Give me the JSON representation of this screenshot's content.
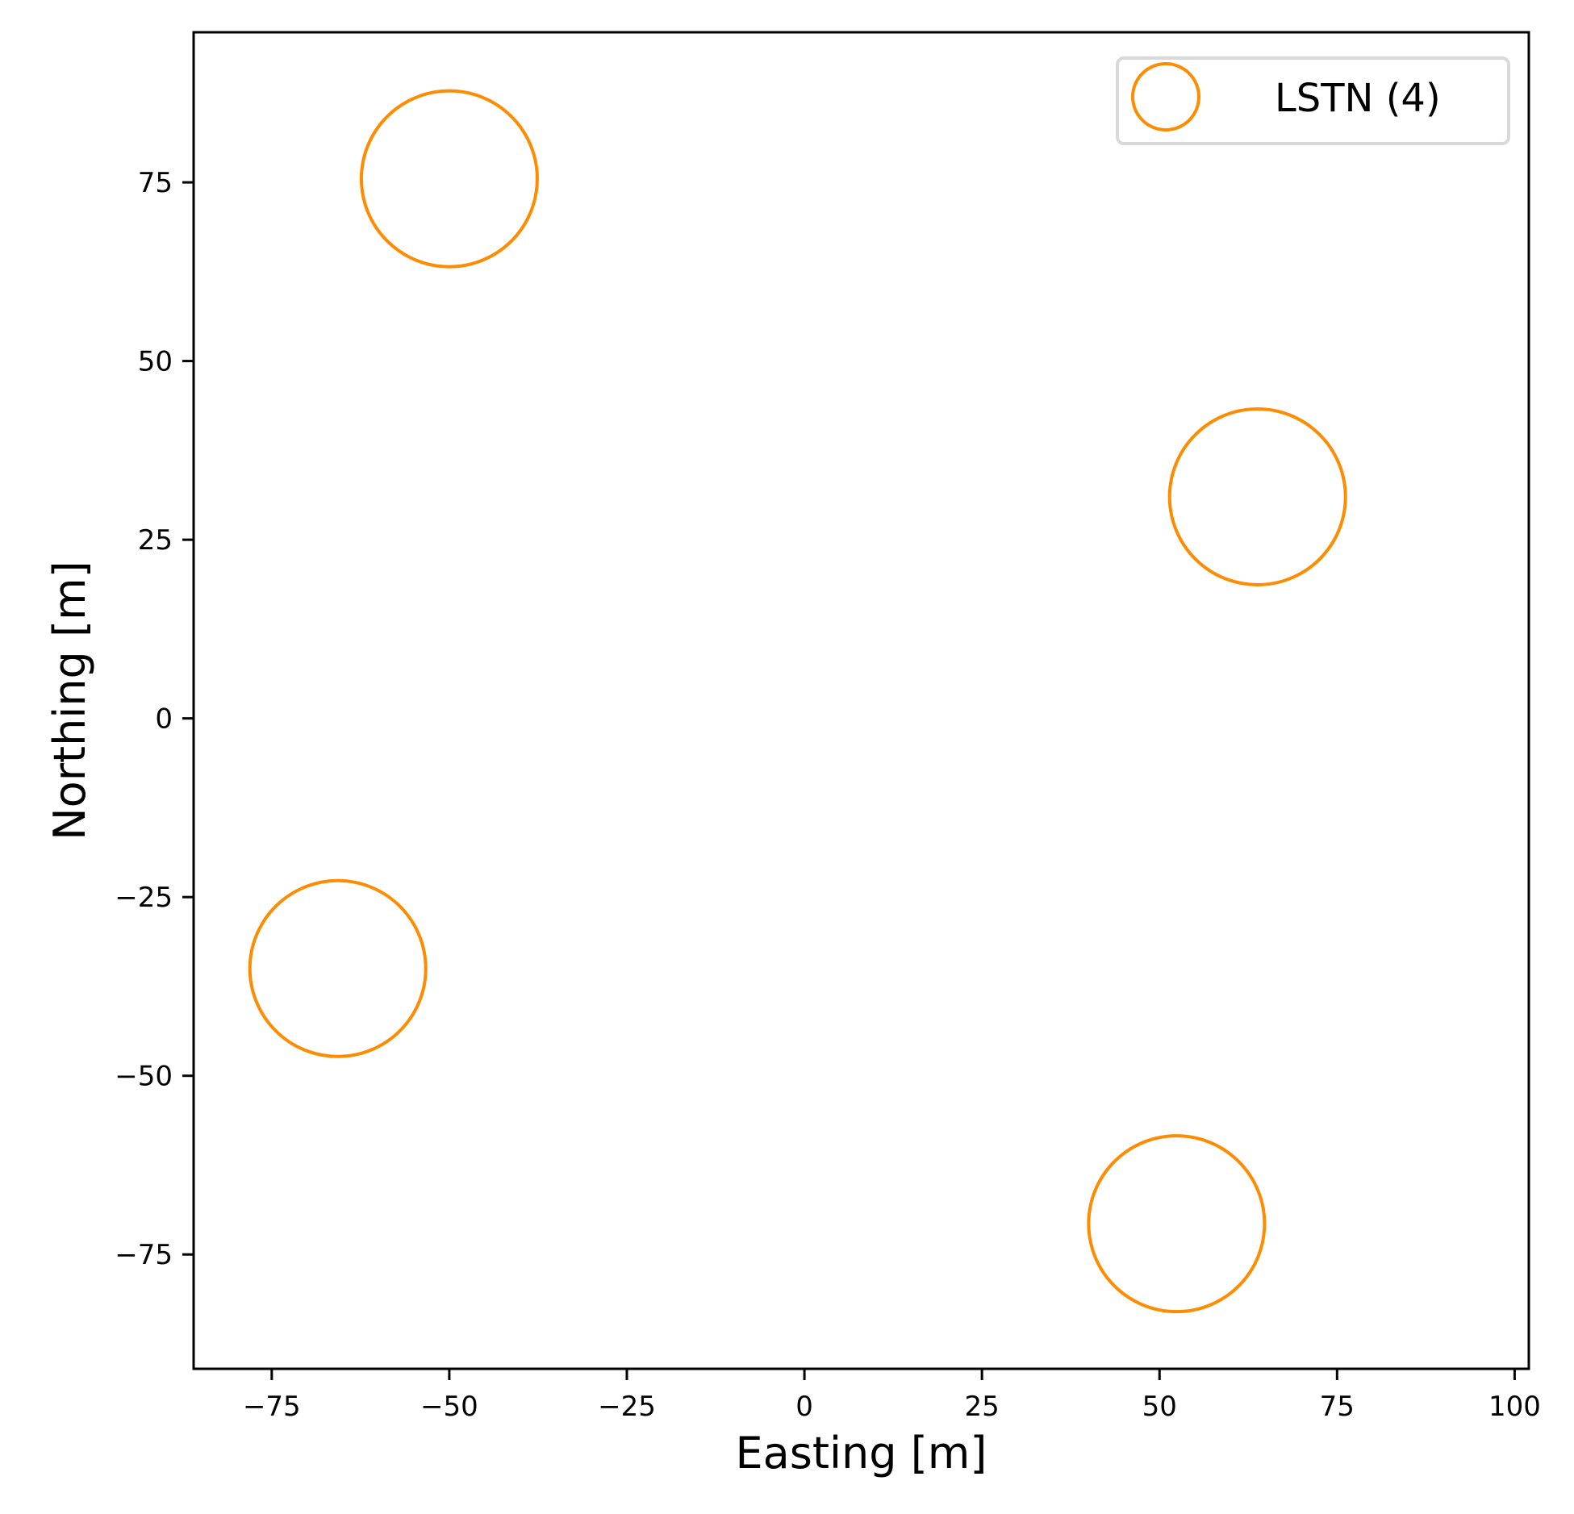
{
  "chart_data": {
    "type": "scatter",
    "title": "",
    "xlabel": "Easting [m]",
    "ylabel": "Northing [m]",
    "xlim": [
      -86,
      102
    ],
    "ylim": [
      -91,
      96
    ],
    "grid": false,
    "legend_placement": "top-right",
    "x_ticks": [
      "−75",
      "−50",
      "−25",
      "0",
      "25",
      "50",
      "75",
      "100"
    ],
    "y_ticks": [
      "−75",
      "−50",
      "−25",
      "0",
      "25",
      "50",
      "75"
    ],
    "x_tick_values": [
      -75,
      -50,
      -25,
      0,
      25,
      50,
      75,
      100
    ],
    "y_tick_values": [
      -75,
      -50,
      -25,
      0,
      25,
      50,
      75
    ],
    "series": [
      {
        "name": "LSTN (4)",
        "color": "#ff8c00",
        "marker": "open-circle",
        "points": [
          {
            "x": -50,
            "y": 75.5
          },
          {
            "x": 63.8,
            "y": 31
          },
          {
            "x": -65.7,
            "y": -35
          },
          {
            "x": 52.4,
            "y": -70.7
          }
        ]
      }
    ]
  }
}
